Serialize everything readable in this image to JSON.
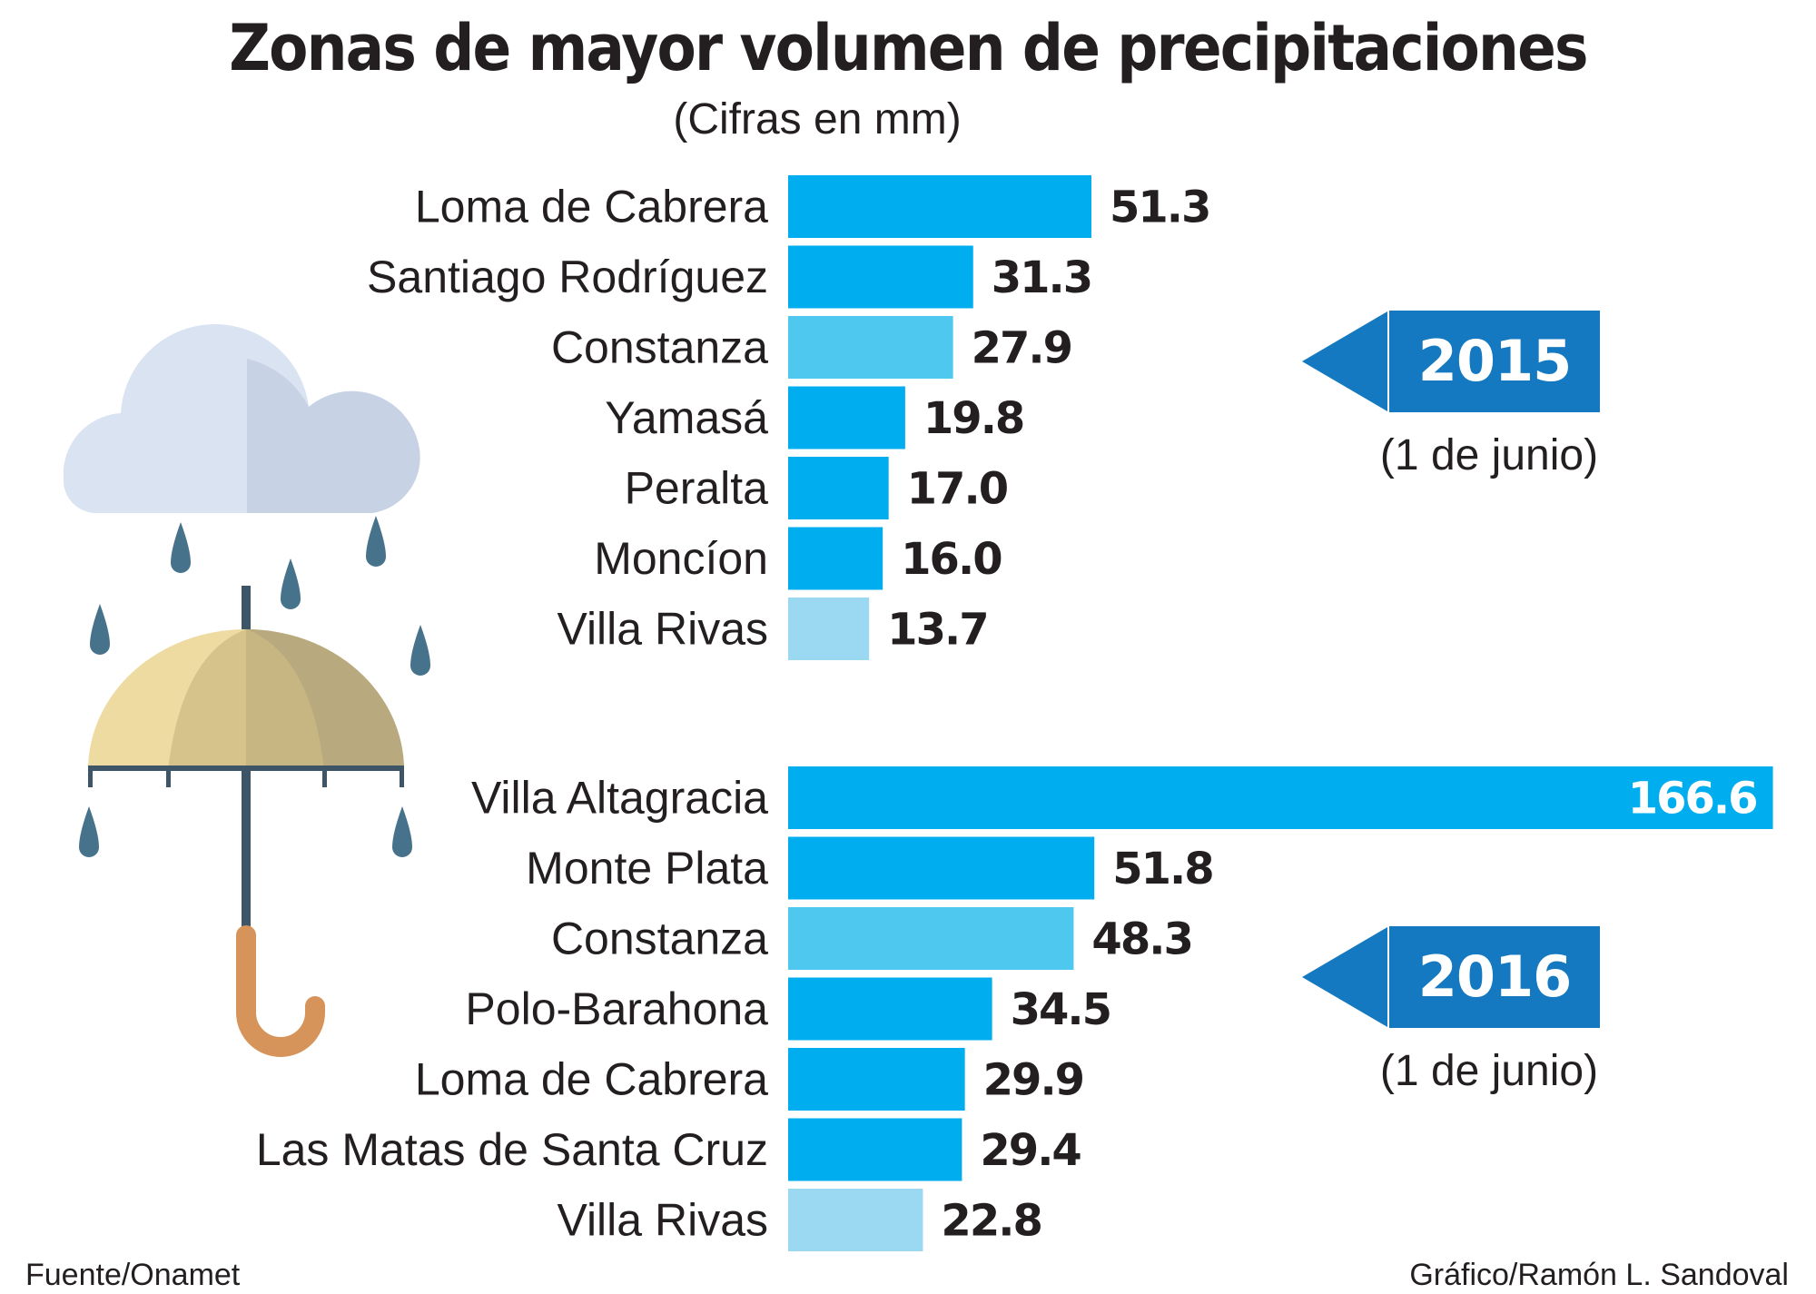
{
  "title": "Zonas de mayor volumen de precipitaciones",
  "subtitle": "(Cifras en mm)",
  "footer": {
    "source": "Fuente/Onamet",
    "credit": "Gráfico/Ramón L. Sandoval"
  },
  "colors": {
    "primary_bar": "#00aeef",
    "secondary_bar": "#4fc8f0",
    "tertiary_bar": "#9bd8f2",
    "badge": "#1479c0"
  },
  "icons": [
    "rain-cloud-icon",
    "umbrella-icon",
    "raindrop-icon",
    "arrow-left-icon"
  ],
  "chart_data": [
    {
      "type": "bar",
      "orientation": "horizontal",
      "year": "2015",
      "note": "(1 de junio)",
      "categories": [
        "Loma de Cabrera",
        "Santiago Rodríguez",
        "Constanza",
        "Yamasá",
        "Peralta",
        "Moncíon",
        "Villa  Rivas"
      ],
      "values": [
        51.3,
        31.3,
        27.9,
        19.8,
        17.0,
        16.0,
        13.7
      ],
      "value_labels": [
        "51.3",
        "31.3",
        "27.9",
        "19.8",
        "17.0",
        "16.0",
        "13.7"
      ],
      "unit": "mm"
    },
    {
      "type": "bar",
      "orientation": "horizontal",
      "year": "2016",
      "note": "(1 de junio)",
      "categories": [
        "Villa Altagracia",
        "Monte Plata",
        "Constanza",
        "Polo-Barahona",
        "Loma de Cabrera",
        "Las Matas de Santa Cruz",
        "Villa  Rivas"
      ],
      "values": [
        166.6,
        51.8,
        48.3,
        34.5,
        29.9,
        29.4,
        22.8
      ],
      "value_labels": [
        "166.6",
        "51.8",
        "48.3",
        "34.5",
        "29.9",
        "29.4",
        "22.8"
      ],
      "unit": "mm"
    }
  ]
}
